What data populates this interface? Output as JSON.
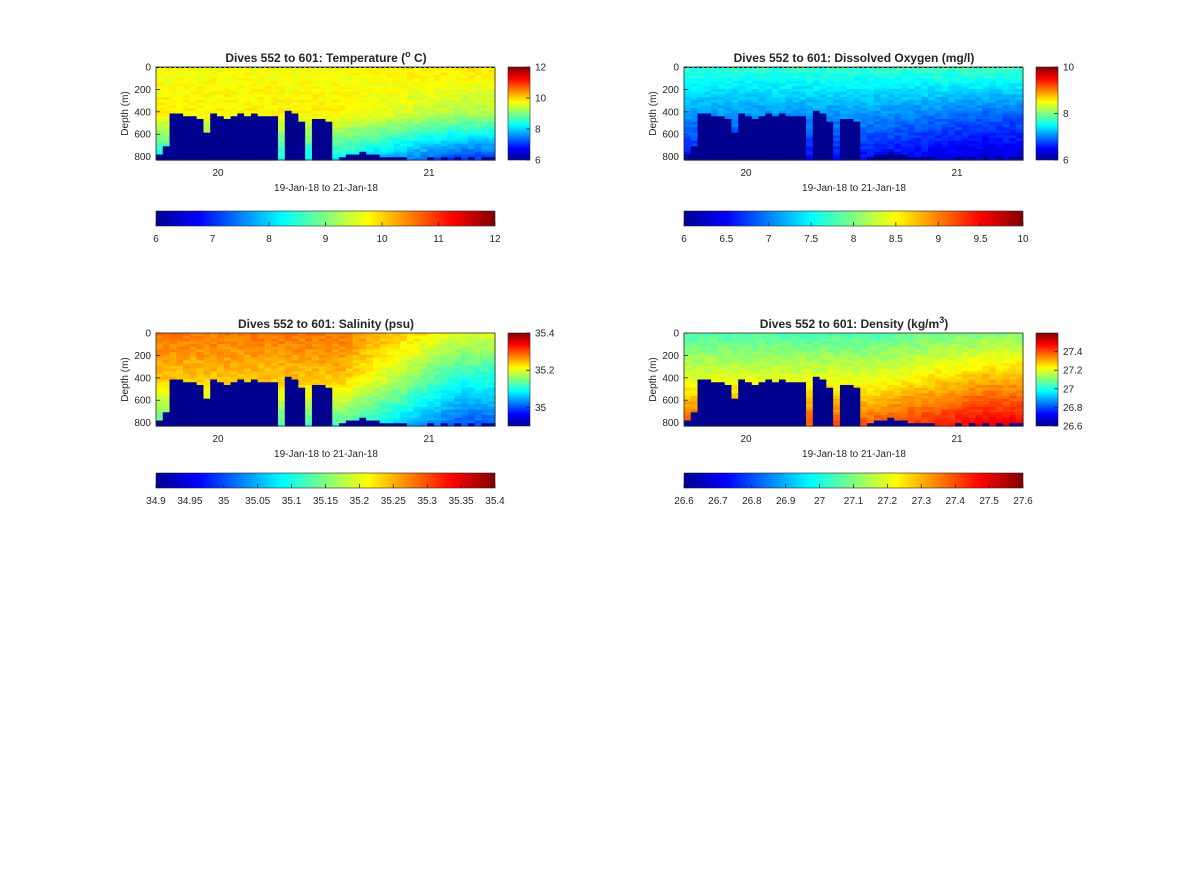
{
  "figure": {
    "shared_xlabel": "19-Jan-18 to 21-Jan-18",
    "ylabel": "Depth (m)"
  },
  "chart_data": [
    {
      "type": "heatmap",
      "title": "Dives 552 to 601: Temperature (",
      "title_sup": "o",
      "title_rest": " C)",
      "xlabel": "19-Jan-18 to 21-Jan-18",
      "ylabel": "Depth (m)",
      "x_ticks": [
        "20",
        "21"
      ],
      "y_ticks": [
        "0",
        "200",
        "400",
        "600",
        "800"
      ],
      "ylim": [
        0,
        830
      ],
      "clim": [
        6,
        12
      ],
      "side_colorbar_ticks": [
        "6",
        "8",
        "10",
        "12"
      ],
      "bottom_colorbar_ticks": [
        "6",
        "7",
        "8",
        "9",
        "10",
        "11",
        "12"
      ],
      "colormap": "jet",
      "profile": {
        "surface": 9.7,
        "mid": 9.8,
        "deep": 8.2
      },
      "later_profile": {
        "surface": 9.9,
        "mid": 9.3,
        "deep": 7.0
      },
      "seabed_color": "#00008f"
    },
    {
      "type": "heatmap",
      "title": "Dives 552 to 601: Dissolved Oxygen (mg/l)",
      "title_sup": "",
      "title_rest": "",
      "xlabel": "19-Jan-18 to 21-Jan-18",
      "ylabel": "Depth (m)",
      "x_ticks": [
        "20",
        "21"
      ],
      "y_ticks": [
        "0",
        "200",
        "400",
        "600",
        "800"
      ],
      "ylim": [
        0,
        830
      ],
      "clim": [
        6,
        10
      ],
      "side_colorbar_ticks": [
        "6",
        "8",
        "10"
      ],
      "bottom_colorbar_ticks": [
        "6",
        "6.5",
        "7",
        "7.5",
        "8",
        "8.5",
        "9",
        "9.5",
        "10"
      ],
      "colormap": "jet",
      "profile": {
        "surface": 7.7,
        "mid": 7.1,
        "deep": 6.5
      },
      "later_profile": {
        "surface": 7.8,
        "mid": 6.9,
        "deep": 6.3
      },
      "seabed_color": "#00008f"
    },
    {
      "type": "heatmap",
      "title": "Dives 552 to 601: Salinity (psu)",
      "title_sup": "",
      "title_rest": "",
      "xlabel": "19-Jan-18 to 21-Jan-18",
      "ylabel": "Depth (m)",
      "x_ticks": [
        "20",
        "21"
      ],
      "y_ticks": [
        "0",
        "200",
        "400",
        "600",
        "800"
      ],
      "ylim": [
        0,
        830
      ],
      "clim": [
        34.9,
        35.4
      ],
      "side_colorbar_ticks": [
        "35",
        "35.2",
        "35.4"
      ],
      "bottom_colorbar_ticks": [
        "34.9",
        "34.95",
        "35",
        "35.05",
        "35.1",
        "35.15",
        "35.2",
        "35.25",
        "35.3",
        "35.35",
        "35.4"
      ],
      "colormap": "jet",
      "profile": {
        "surface": 35.28,
        "mid": 35.24,
        "deep": 35.12
      },
      "later_profile": {
        "surface": 35.2,
        "mid": 35.1,
        "deep": 35.0
      },
      "seabed_color": "#00008f"
    },
    {
      "type": "heatmap",
      "title": "Dives 552 to 601: Density (kg/m",
      "title_sup": "3",
      "title_rest": ")",
      "xlabel": "19-Jan-18 to 21-Jan-18",
      "ylabel": "Depth (m)",
      "x_ticks": [
        "20",
        "21"
      ],
      "y_ticks": [
        "0",
        "200",
        "400",
        "600",
        "800"
      ],
      "ylim": [
        0,
        830
      ],
      "clim": [
        26.6,
        27.6
      ],
      "side_colorbar_ticks": [
        "26.6",
        "26.8",
        "27",
        "27.2",
        "27.4"
      ],
      "bottom_colorbar_ticks": [
        "26.6",
        "26.7",
        "26.8",
        "26.9",
        "27",
        "27.1",
        "27.2",
        "27.3",
        "27.4",
        "27.5",
        "27.6"
      ],
      "colormap": "jet",
      "profile": {
        "surface": 27.05,
        "mid": 27.2,
        "deep": 27.4
      },
      "later_profile": {
        "surface": 27.1,
        "mid": 27.3,
        "deep": 27.5
      },
      "seabed_color": "#00008f"
    }
  ]
}
